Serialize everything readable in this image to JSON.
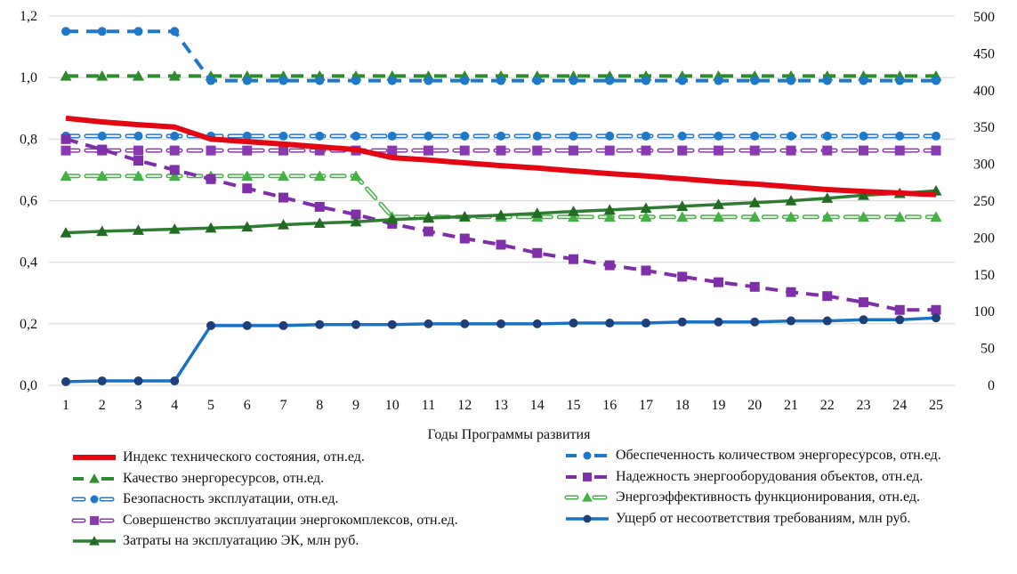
{
  "chart_data": {
    "type": "line",
    "title": "",
    "xlabel": "Годы Программы развития",
    "ylabel": "",
    "x": [
      1,
      2,
      3,
      4,
      5,
      6,
      7,
      8,
      9,
      10,
      11,
      12,
      13,
      14,
      15,
      16,
      17,
      18,
      19,
      20,
      21,
      22,
      23,
      24,
      25
    ],
    "ylim": [
      0,
      1.2
    ],
    "y_ticks": [
      "0,0",
      "0,2",
      "0,4",
      "0,6",
      "0,8",
      "1,0",
      "1,2"
    ],
    "y_tick_values": [
      0,
      0.2,
      0.4,
      0.6,
      0.8,
      1.0,
      1.2
    ],
    "y2lim": [
      0,
      500
    ],
    "y2_ticks": [
      "0",
      "50",
      "100",
      "150",
      "200",
      "250",
      "300",
      "350",
      "400",
      "450",
      "500"
    ],
    "y2_tick_values": [
      0,
      50,
      100,
      150,
      200,
      250,
      300,
      350,
      400,
      450,
      500
    ],
    "grid": true,
    "legend_position": "bottom",
    "series": [
      {
        "name": "Индекс технического состояния, отн.ед.",
        "axis": "left",
        "color": "#e30613",
        "style": "solid-thick",
        "marker": "none",
        "values": [
          0.868,
          0.856,
          0.847,
          0.839,
          0.8,
          0.792,
          0.784,
          0.775,
          0.766,
          0.74,
          0.732,
          0.723,
          0.714,
          0.706,
          0.697,
          0.688,
          0.68,
          0.671,
          0.662,
          0.654,
          0.645,
          0.636,
          0.63,
          0.625,
          0.62
        ]
      },
      {
        "name": "Обеспеченность количеством энергоресурсов, отн.ед.",
        "axis": "left",
        "color": "#1f78c8",
        "style": "dash",
        "marker": "circle",
        "values": [
          1.15,
          1.15,
          1.15,
          1.15,
          0.99,
          0.99,
          0.99,
          0.99,
          0.99,
          0.99,
          0.99,
          0.99,
          0.99,
          0.99,
          0.99,
          0.99,
          0.99,
          0.99,
          0.99,
          0.99,
          0.99,
          0.99,
          0.99,
          0.99,
          0.99
        ]
      },
      {
        "name": "Качество энергоресурсов, отн.ед.",
        "axis": "left",
        "color": "#2e8b2e",
        "style": "dash",
        "marker": "triangle",
        "values": [
          1.005,
          1.005,
          1.005,
          1.005,
          1.005,
          1.005,
          1.005,
          1.005,
          1.005,
          1.005,
          1.005,
          1.005,
          1.005,
          1.005,
          1.005,
          1.005,
          1.005,
          1.005,
          1.005,
          1.005,
          1.005,
          1.005,
          1.005,
          1.005,
          1.005
        ]
      },
      {
        "name": "Надежность энергооборудования объектов, отн.ед.",
        "axis": "left",
        "color": "#7f2fa8",
        "style": "dash",
        "marker": "square",
        "values": [
          0.8,
          0.766,
          0.73,
          0.7,
          0.67,
          0.64,
          0.61,
          0.58,
          0.555,
          0.525,
          0.5,
          0.477,
          0.457,
          0.43,
          0.41,
          0.39,
          0.373,
          0.353,
          0.335,
          0.32,
          0.303,
          0.29,
          0.27,
          0.245,
          0.245
        ]
      },
      {
        "name": "Безопасность эксплуатации, отн.ед.",
        "axis": "left",
        "color": "#1f78c8",
        "style": "double-dash",
        "marker": "circle",
        "values": [
          0.81,
          0.81,
          0.81,
          0.81,
          0.81,
          0.81,
          0.81,
          0.81,
          0.81,
          0.81,
          0.81,
          0.81,
          0.81,
          0.81,
          0.81,
          0.81,
          0.81,
          0.81,
          0.81,
          0.81,
          0.81,
          0.81,
          0.81,
          0.81,
          0.81
        ]
      },
      {
        "name": "Энергоэффективность функционирования, отн.ед.",
        "axis": "left",
        "color": "#45b045",
        "style": "double-dash",
        "marker": "triangle",
        "values": [
          0.68,
          0.68,
          0.68,
          0.68,
          0.68,
          0.68,
          0.68,
          0.68,
          0.68,
          0.547,
          0.547,
          0.547,
          0.547,
          0.547,
          0.547,
          0.547,
          0.547,
          0.547,
          0.547,
          0.547,
          0.547,
          0.547,
          0.547,
          0.547,
          0.547
        ]
      },
      {
        "name": "Совершенство эксплуатации энергокомплексов, отн.ед.",
        "axis": "left",
        "color": "#8a3ab0",
        "style": "double-dash",
        "marker": "square",
        "values": [
          0.763,
          0.763,
          0.763,
          0.763,
          0.763,
          0.763,
          0.763,
          0.763,
          0.763,
          0.763,
          0.763,
          0.763,
          0.763,
          0.763,
          0.763,
          0.763,
          0.763,
          0.763,
          0.763,
          0.763,
          0.763,
          0.763,
          0.763,
          0.763,
          0.763
        ]
      },
      {
        "name": "Ущерб от несоответствия требованиям, млн руб.",
        "axis": "right",
        "color": "#1a72c4",
        "marker_color": "#1f3f7a",
        "style": "solid",
        "marker": "circle",
        "values": [
          5,
          6,
          6,
          6,
          81,
          81,
          81,
          82.5,
          82.5,
          82.5,
          83.5,
          83.5,
          83.5,
          83.5,
          84.5,
          84.5,
          84.5,
          86,
          86,
          86,
          87.5,
          87.5,
          89,
          89,
          91.5
        ]
      },
      {
        "name": "Затраты на эксплуатацию ЭК, млн руб.",
        "axis": "right",
        "color": "#2e7d32",
        "marker_color": "#236b23",
        "style": "solid",
        "marker": "triangle",
        "values": [
          207,
          209,
          210.5,
          212,
          213.5,
          215,
          218,
          220,
          222,
          225,
          227,
          229,
          231,
          233.5,
          236,
          238,
          240.5,
          243,
          245.5,
          248,
          250.5,
          254,
          258,
          260.5,
          264
        ]
      }
    ],
    "legend_order": [
      {
        "series": 0,
        "col": "left"
      },
      {
        "series": 1,
        "col": "right"
      },
      {
        "series": 2,
        "col": "left"
      },
      {
        "series": 3,
        "col": "right"
      },
      {
        "series": 4,
        "col": "left"
      },
      {
        "series": 5,
        "col": "right"
      },
      {
        "series": 6,
        "col": "left"
      },
      {
        "series": 7,
        "col": "right"
      },
      {
        "series": 8,
        "col": "left"
      }
    ]
  }
}
